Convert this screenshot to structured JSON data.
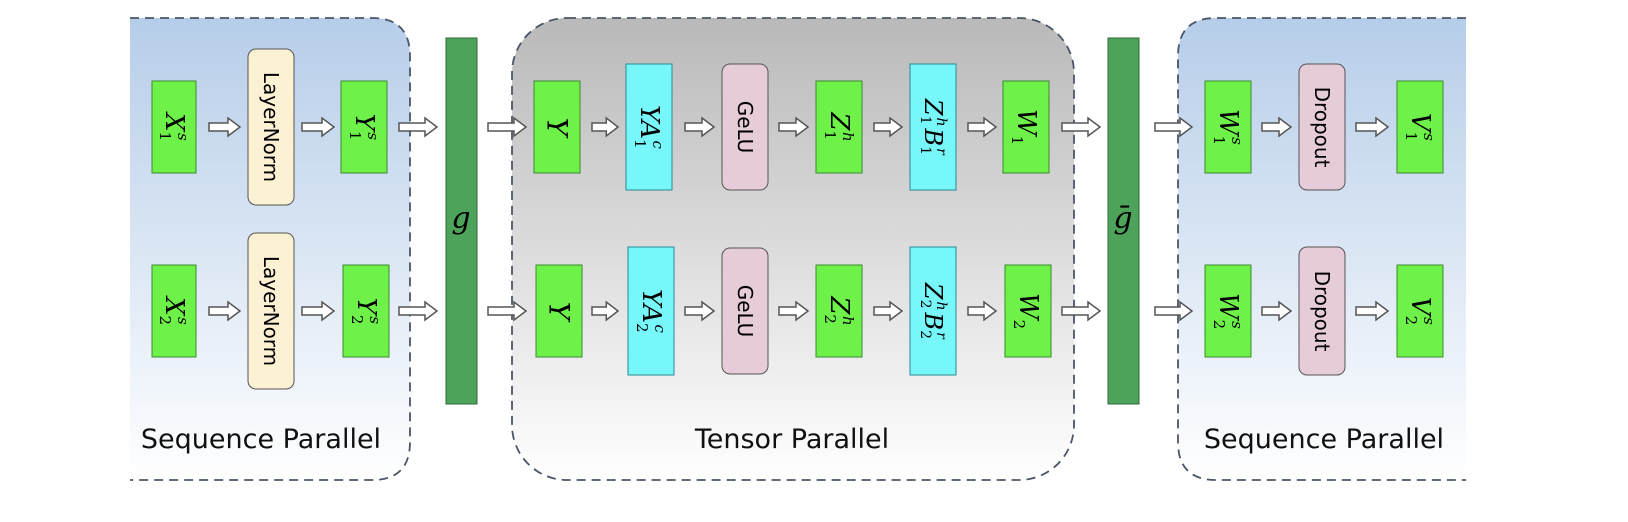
{
  "sections": {
    "left_title": "Sequence Parallel",
    "center_title": "Tensor Parallel",
    "right_title": "Sequence Parallel"
  },
  "ops": {
    "g": "g",
    "g_bar": "ḡ",
    "layernorm": "LayerNorm",
    "gelu": "GeLU",
    "dropout": "Dropout"
  },
  "rows": [
    {
      "x_in": {
        "base": "X",
        "sup": "s",
        "sub": "1"
      },
      "y_out": {
        "base": "Y",
        "sup": "s",
        "sub": "1"
      },
      "y_full": {
        "base": "Y"
      },
      "ya": {
        "pre": "YA",
        "sup": "c",
        "sub": "1"
      },
      "z": {
        "base": "Z",
        "sup": "h",
        "sub": "1"
      },
      "zb": {
        "base": "Z",
        "sup": "h",
        "sub": "1",
        "base2": "B",
        "sup2": "r",
        "sub2": "1"
      },
      "w": {
        "base": "W",
        "sub": "1"
      },
      "ws": {
        "base": "W",
        "sup": "s",
        "sub": "1"
      },
      "v": {
        "base": "V",
        "sup": "s",
        "sub": "1"
      }
    },
    {
      "x_in": {
        "base": "X",
        "sup": "s",
        "sub": "2"
      },
      "y_out": {
        "base": "Y",
        "sup": "s",
        "sub": "2"
      },
      "y_full": {
        "base": "Y"
      },
      "ya": {
        "pre": "YA",
        "sup": "c",
        "sub": "2"
      },
      "z": {
        "base": "Z",
        "sup": "h",
        "sub": "2"
      },
      "zb": {
        "base": "Z",
        "sup": "h",
        "sub": "2",
        "base2": "B",
        "sup2": "r",
        "sub2": "2"
      },
      "w": {
        "base": "W",
        "sub": "2"
      },
      "ws": {
        "base": "W",
        "sup": "s",
        "sub": "2"
      },
      "v": {
        "base": "V",
        "sup": "s",
        "sub": "2"
      }
    }
  ],
  "colors": {
    "green_box": "#6ef24a",
    "green_bar": "#4ea35a",
    "cyan_box": "#78f7fb",
    "layernorm_fill": "#fdf1d4",
    "gelu_fill": "#e6ccd8",
    "dropout_fill": "#e6ccd8",
    "seq_bg_top": "#b6cde9",
    "seq_bg_bottom": "#ffffff",
    "tensor_bg_top": "#b9b9b9",
    "tensor_bg_bottom": "#ffffff"
  }
}
